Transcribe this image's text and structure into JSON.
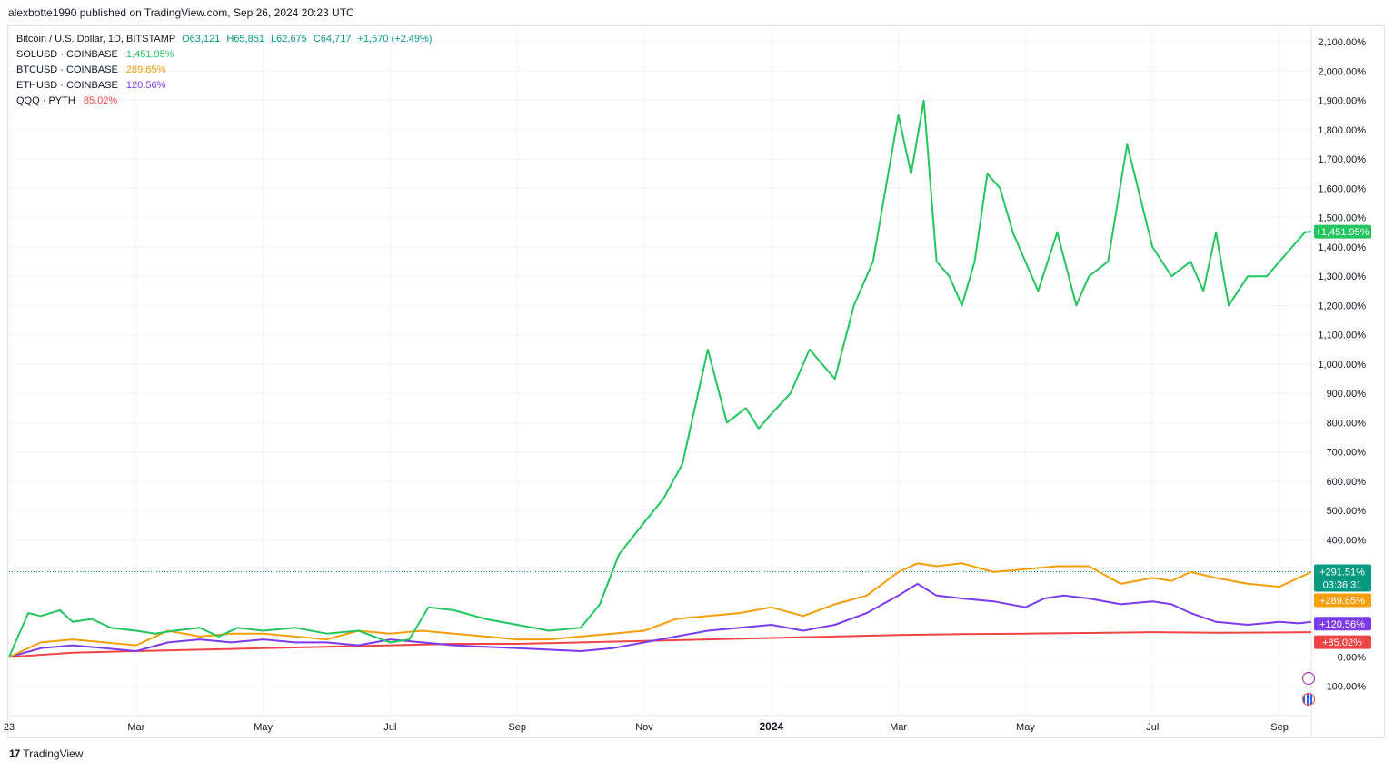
{
  "header": {
    "text": "alexbotte1990 published on TradingView.com, Sep 26, 2024 20:23 UTC"
  },
  "legend": {
    "main": {
      "symbol": "Bitcoin / U.S. Dollar, 1D, BITSTAMP",
      "open": "O63,121",
      "high": "H65,851",
      "low": "L62,675",
      "close": "C64,717",
      "change": "+1,570 (+2.49%)",
      "color": "#089981"
    },
    "items": [
      {
        "name": "SOLUSD · COINBASE",
        "value": "1,451.95%",
        "color": "#22c55e"
      },
      {
        "name": "BTCUSD · COINBASE",
        "value": "289.65%",
        "color": "#f59e0b"
      },
      {
        "name": "ETHUSD · COINBASE",
        "value": "120.56%",
        "color": "#7c3aed"
      },
      {
        "name": "QQQ · PYTH",
        "value": "85.02%",
        "color": "#ef4444"
      }
    ]
  },
  "footer": {
    "logo": "17",
    "brand": "TradingView"
  },
  "chart_data": {
    "type": "line",
    "yunit": "percent",
    "ylim": [
      -200,
      2150
    ],
    "yticks": [
      2100,
      2000,
      1900,
      1800,
      1700,
      1600,
      1500,
      1400,
      1300,
      1200,
      1100,
      1000,
      900,
      800,
      700,
      600,
      500,
      400,
      0,
      -100
    ],
    "ytick_labels": [
      "2,100.00%",
      "2,000.00%",
      "1,900.00%",
      "1,800.00%",
      "1,700.00%",
      "1,600.00%",
      "1,500.00%",
      "1,400.00%",
      "1,300.00%",
      "1,200.00%",
      "1,100.00%",
      "1,000.00%",
      "900.00%",
      "800.00%",
      "700.00%",
      "600.00%",
      "500.00%",
      "400.00%",
      "0.00%",
      "-100.00%"
    ],
    "xlim": [
      0,
      20.5
    ],
    "x_ticks": [
      {
        "x": 0,
        "label": "23"
      },
      {
        "x": 2,
        "label": "Mar"
      },
      {
        "x": 4,
        "label": "May"
      },
      {
        "x": 6,
        "label": "Jul"
      },
      {
        "x": 8,
        "label": "Sep"
      },
      {
        "x": 10,
        "label": "Nov"
      },
      {
        "x": 12,
        "label": "2024"
      },
      {
        "x": 14,
        "label": "Mar"
      },
      {
        "x": 16,
        "label": "May"
      },
      {
        "x": 18,
        "label": "Jul"
      },
      {
        "x": 20,
        "label": "Sep"
      }
    ],
    "price_line": {
      "value": 291.51,
      "label": "+291.51%",
      "countdown": "03:36:31",
      "color": "#089981"
    },
    "series": [
      {
        "name": "SOLUSD · COINBASE",
        "color": "#22c55e",
        "end_label": "+1,451.95%",
        "x": [
          0,
          0.3,
          0.5,
          0.8,
          1,
          1.3,
          1.6,
          2,
          2.3,
          2.6,
          3,
          3.3,
          3.6,
          4,
          4.5,
          5,
          5.5,
          6,
          6.3,
          6.6,
          7,
          7.5,
          8,
          8.5,
          9,
          9.3,
          9.6,
          10,
          10.3,
          10.6,
          11,
          11.3,
          11.6,
          11.8,
          12,
          12.3,
          12.6,
          13,
          13.3,
          13.6,
          14,
          14.2,
          14.4,
          14.6,
          14.8,
          15,
          15.2,
          15.4,
          15.6,
          15.8,
          16,
          16.2,
          16.5,
          16.8,
          17,
          17.3,
          17.6,
          18,
          18.3,
          18.6,
          18.8,
          19,
          19.2,
          19.5,
          19.8,
          20,
          20.2,
          20.4,
          20.5
        ],
        "y": [
          0,
          150,
          140,
          160,
          120,
          130,
          100,
          90,
          80,
          90,
          100,
          70,
          100,
          90,
          100,
          80,
          90,
          50,
          60,
          170,
          160,
          130,
          110,
          90,
          100,
          180,
          350,
          460,
          540,
          660,
          1050,
          800,
          850,
          780,
          830,
          900,
          1050,
          950,
          1200,
          1350,
          1850,
          1650,
          1900,
          1350,
          1300,
          1200,
          1350,
          1650,
          1600,
          1450,
          1350,
          1250,
          1450,
          1200,
          1300,
          1350,
          1750,
          1400,
          1300,
          1350,
          1250,
          1450,
          1200,
          1300,
          1300,
          1350,
          1400,
          1450,
          1452
        ]
      },
      {
        "name": "BTCUSD · COINBASE",
        "color": "#f59e0b",
        "end_label": "+289.65%",
        "x": [
          0,
          0.5,
          1,
          1.5,
          2,
          2.5,
          3,
          3.5,
          4,
          4.5,
          5,
          5.5,
          6,
          6.5,
          7,
          7.5,
          8,
          8.5,
          9,
          9.5,
          10,
          10.5,
          11,
          11.5,
          12,
          12.5,
          13,
          13.5,
          14,
          14.3,
          14.6,
          15,
          15.5,
          16,
          16.5,
          17,
          17.5,
          18,
          18.3,
          18.6,
          19,
          19.5,
          20,
          20.3,
          20.5
        ],
        "y": [
          0,
          50,
          60,
          50,
          40,
          90,
          70,
          80,
          80,
          70,
          60,
          90,
          80,
          90,
          80,
          70,
          60,
          60,
          70,
          80,
          90,
          130,
          140,
          150,
          170,
          140,
          180,
          210,
          290,
          320,
          310,
          320,
          290,
          300,
          310,
          310,
          250,
          270,
          260,
          290,
          270,
          250,
          240,
          270,
          290
        ]
      },
      {
        "name": "ETHUSD · COINBASE",
        "color": "#7c3aed",
        "end_label": "+120.56%",
        "x": [
          0,
          0.5,
          1,
          1.5,
          2,
          2.5,
          3,
          3.5,
          4,
          4.5,
          5,
          5.5,
          6,
          6.5,
          7,
          7.5,
          8,
          8.5,
          9,
          9.5,
          10,
          10.5,
          11,
          11.5,
          12,
          12.5,
          13,
          13.5,
          14,
          14.3,
          14.6,
          15,
          15.5,
          16,
          16.3,
          16.6,
          17,
          17.5,
          18,
          18.3,
          18.6,
          19,
          19.5,
          20,
          20.3,
          20.5
        ],
        "y": [
          0,
          30,
          40,
          30,
          20,
          50,
          60,
          50,
          60,
          50,
          50,
          40,
          60,
          50,
          40,
          35,
          30,
          25,
          20,
          30,
          50,
          70,
          90,
          100,
          110,
          90,
          110,
          150,
          210,
          250,
          210,
          200,
          190,
          170,
          200,
          210,
          200,
          180,
          190,
          180,
          150,
          120,
          110,
          120,
          115,
          120
        ]
      },
      {
        "name": "QQQ · PYTH",
        "color": "#ef4444",
        "end_label": "+85.02%",
        "x": [
          0,
          1,
          2,
          3,
          4,
          5,
          6,
          7,
          8,
          9,
          10,
          11,
          12,
          13,
          14,
          15,
          16,
          17,
          18,
          19,
          20,
          20.5
        ],
        "y": [
          0,
          15,
          20,
          25,
          30,
          35,
          40,
          45,
          45,
          50,
          55,
          60,
          65,
          70,
          75,
          78,
          80,
          82,
          85,
          83,
          84,
          85
        ]
      }
    ]
  }
}
